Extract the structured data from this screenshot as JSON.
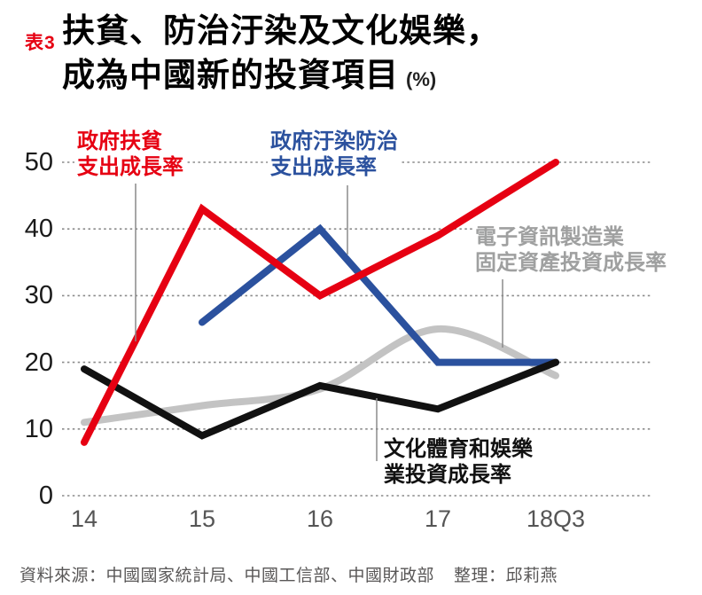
{
  "header": {
    "tag": "表3",
    "title_line1": "扶貧、防治汙染及文化娛樂，",
    "title_line2": "成為中國新的投資項目",
    "unit": "(%)"
  },
  "chart_data": {
    "type": "line",
    "title": "扶貧、防治汙染及文化娛樂，成為中國新的投資項目",
    "unit": "%",
    "categories": [
      "14",
      "15",
      "16",
      "17",
      "18Q3"
    ],
    "yticks": [
      0,
      10,
      20,
      30,
      40,
      50
    ],
    "ylim": [
      0,
      50
    ],
    "grid": "horizontal-dotted",
    "legend_position": "inline-annotations",
    "series": [
      {
        "key": "poverty",
        "name": "政府扶貧支出成長率",
        "label_lines": [
          "政府扶貧",
          "支出成長率"
        ],
        "color": "#e60012",
        "values": [
          8,
          43,
          30,
          39,
          50
        ]
      },
      {
        "key": "pollution",
        "name": "政府汙染防治支出成長率",
        "label_lines": [
          "政府汙染防治",
          "支出成長率"
        ],
        "color": "#2b519e",
        "values": [
          null,
          26,
          40,
          20,
          20
        ]
      },
      {
        "key": "electronics",
        "name": "電子資訊製造業固定資產投資成長率",
        "label_lines": [
          "電子資訊製造業",
          "固定資產投資成長率"
        ],
        "color": "#c3c3c3",
        "label_color": "#9fa0a0",
        "values": [
          11,
          13.5,
          16,
          25,
          18
        ],
        "smooth": true
      },
      {
        "key": "culture",
        "name": "文化體育和娛樂業投資成長率",
        "label_lines": [
          "文化體育和娛樂",
          "業投資成長率"
        ],
        "color": "#111111",
        "values": [
          19,
          9,
          16.5,
          13,
          20
        ]
      }
    ]
  },
  "footer": {
    "source": "資料來源：中國國家統計局、中國工信部、中國財政部",
    "editor": "整理：邱莉燕"
  }
}
